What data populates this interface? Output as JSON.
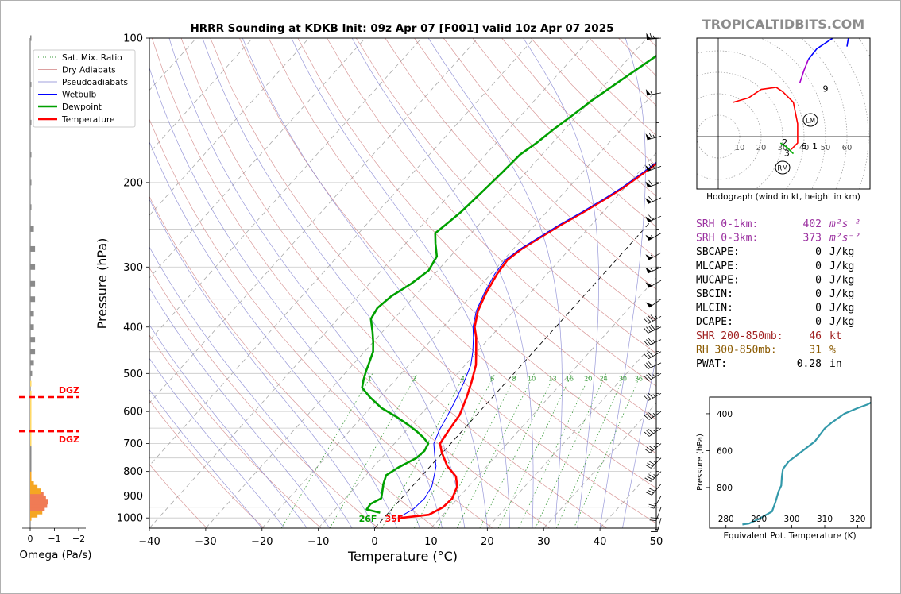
{
  "brand": "TROPICALTIDBITS.COM",
  "colors": {
    "temperature": "#ff0000",
    "dewpoint": "#00a000",
    "wetbulb": "#0000ff",
    "dry_adiabat": "#d08080",
    "pseudoadiabat": "#8080d0",
    "mixing_ratio": "#3a9a3a",
    "theta_e": "#3399aa",
    "dgz": "#ff0000",
    "hodo_red": "#ff0000",
    "hodo_purple": "#aa00cc",
    "hodo_blue": "#0000ff",
    "hodo_green": "#00aa00",
    "srh": "#9b30a0",
    "shr": "#a02020",
    "rh": "#8b5a00"
  },
  "chart_data": [
    {
      "type": "line",
      "title": "HRRR Sounding at KDKB Init: 09z Apr 07 [F001] valid 10z Apr 07 2025",
      "xlabel": "Temperature (°C)",
      "ylabel": "Pressure (hPa)",
      "xlim": [
        -40,
        50
      ],
      "ylim": [
        1050,
        100
      ],
      "log_y": true,
      "grid": true,
      "x_ticks": [
        "−40",
        "−30",
        "−20",
        "−10",
        "0",
        "10",
        "20",
        "30",
        "40",
        "50"
      ],
      "y_ticks": [
        "100",
        "200",
        "300",
        "400",
        "500",
        "600",
        "700",
        "800",
        "900",
        "1000"
      ],
      "legend": {
        "placement": "top-left",
        "entries": [
          "Sat. Mix. Ratio",
          "Dry Adiabats",
          "Pseudoadiabats",
          "Wetbulb",
          "Dewpoint",
          "Temperature"
        ]
      },
      "mixing_ratio_labels": [
        "1",
        "2",
        "4",
        "6",
        "8",
        "10",
        "13",
        "16",
        "20",
        "24",
        "30",
        "36"
      ],
      "surface_labels": {
        "dewpoint": "26F",
        "temperature": "35F"
      },
      "series": [
        {
          "name": "Temperature",
          "points": [
            [
              3.0,
              1000
            ],
            [
              7.5,
              985
            ],
            [
              8.8,
              950
            ],
            [
              9.0,
              910
            ],
            [
              8.0,
              860
            ],
            [
              6.2,
              820
            ],
            [
              3.0,
              780
            ],
            [
              -0.2,
              730
            ],
            [
              -1.9,
              700
            ],
            [
              -2.5,
              655
            ],
            [
              -3.0,
              610
            ],
            [
              -4.6,
              560
            ],
            [
              -6.2,
              520
            ],
            [
              -8.1,
              480
            ],
            [
              -10.2,
              450
            ],
            [
              -12.5,
              420
            ],
            [
              -14.4,
              400
            ],
            [
              -16.4,
              370
            ],
            [
              -17.8,
              340
            ],
            [
              -18.9,
              310
            ],
            [
              -19.3,
              290
            ],
            [
              -18.5,
              275
            ],
            [
              -17.0,
              260
            ],
            [
              -15.4,
              245
            ],
            [
              -13.4,
              230
            ],
            [
              -11.5,
              215
            ],
            [
              -10.3,
              205
            ],
            [
              -8.9,
              190
            ],
            [
              -7.6,
              175
            ],
            [
              -5.2,
              165
            ],
            [
              -3.6,
              155
            ],
            [
              -2.8,
              148
            ],
            [
              -2.1,
              140
            ],
            [
              -1.4,
              130
            ],
            [
              -0.8,
              120
            ],
            [
              -0.3,
              110
            ],
            [
              0.2,
              100
            ]
          ]
        },
        {
          "name": "Wetbulb",
          "points": [
            [
              2.5,
              1000
            ],
            [
              3.8,
              960
            ],
            [
              4.1,
              910
            ],
            [
              3.5,
              860
            ],
            [
              2.3,
              820
            ],
            [
              1.0,
              780
            ],
            [
              -1.0,
              740
            ],
            [
              -3.0,
              700
            ],
            [
              -4.2,
              655
            ],
            [
              -5.1,
              610
            ],
            [
              -6.3,
              560
            ],
            [
              -7.5,
              520
            ],
            [
              -9.0,
              480
            ],
            [
              -10.8,
              450
            ],
            [
              -13.0,
              420
            ],
            [
              -14.7,
              400
            ],
            [
              -16.7,
              370
            ],
            [
              -18.1,
              340
            ],
            [
              -19.3,
              310
            ],
            [
              -19.7,
              290
            ],
            [
              -18.8,
              275
            ],
            [
              -17.3,
              260
            ],
            [
              -15.7,
              245
            ],
            [
              -13.7,
              230
            ],
            [
              -11.8,
              215
            ],
            [
              -10.6,
              205
            ],
            [
              -9.2,
              190
            ],
            [
              -7.9,
              175
            ],
            [
              -5.5,
              165
            ],
            [
              -3.9,
              155
            ],
            [
              -3.1,
              148
            ],
            [
              -2.4,
              140
            ],
            [
              -1.7,
              130
            ],
            [
              -1.1,
              120
            ],
            [
              -0.6,
              110
            ],
            [
              -0.1,
              100
            ]
          ]
        },
        {
          "name": "Dewpoint",
          "points": [
            [
              -1.5,
              975
            ],
            [
              -4.4,
              960
            ],
            [
              -4.6,
              935
            ],
            [
              -3.6,
              910
            ],
            [
              -4.2,
              890
            ],
            [
              -5.5,
              850
            ],
            [
              -6.4,
              815
            ],
            [
              -5.5,
              785
            ],
            [
              -3.8,
              750
            ],
            [
              -3.5,
              725
            ],
            [
              -4.0,
              700
            ],
            [
              -5.8,
              680
            ],
            [
              -8.0,
              660
            ],
            [
              -10.5,
              640
            ],
            [
              -14.0,
              615
            ],
            [
              -18.0,
              590
            ],
            [
              -21.8,
              560
            ],
            [
              -24.7,
              535
            ],
            [
              -25.7,
              515
            ],
            [
              -26.6,
              495
            ],
            [
              -27.4,
              475
            ],
            [
              -28.5,
              450
            ],
            [
              -30.0,
              430
            ],
            [
              -31.7,
              410
            ],
            [
              -34.1,
              385
            ],
            [
              -34.7,
              365
            ],
            [
              -34.1,
              345
            ],
            [
              -32.6,
              325
            ],
            [
              -31.6,
              305
            ],
            [
              -32.4,
              285
            ],
            [
              -34.7,
              268
            ],
            [
              -36.4,
              255
            ],
            [
              -35.9,
              245
            ],
            [
              -35.2,
              230
            ],
            [
              -34.7,
              210
            ],
            [
              -34.2,
              190
            ],
            [
              -33.9,
              175
            ],
            [
              -32.8,
              165
            ],
            [
              -32.0,
              155
            ],
            [
              -30.9,
              145
            ],
            [
              -29.8,
              135
            ],
            [
              -28.3,
              125
            ],
            [
              -26.6,
              115
            ],
            [
              -25.3,
              108
            ],
            [
              -24.6,
              100
            ]
          ]
        }
      ]
    },
    {
      "type": "line",
      "title": "Hodograph (wind in kt, height in km)",
      "ring_labels": [
        "10",
        "20",
        "30",
        "40",
        "50",
        "60"
      ],
      "height_labels": [
        "1",
        "2",
        "3",
        "6",
        "9"
      ],
      "storm_motion_labels": [
        "LM",
        "RM"
      ],
      "series": [
        {
          "name": "0-1 km",
          "points": [
            [
              34,
              -6
            ],
            [
              37,
              -3
            ],
            [
              37,
              6
            ],
            [
              35,
              16
            ]
          ]
        },
        {
          "name": "1-3 km",
          "points": [
            [
              35,
              -8
            ],
            [
              32,
              -5
            ],
            [
              29,
              -3
            ]
          ]
        },
        {
          "name": "3-6 km",
          "points": [
            [
              35,
              16
            ],
            [
              30,
              21
            ],
            [
              27,
              23
            ],
            [
              20,
              22
            ],
            [
              14,
              18
            ],
            [
              7,
              16
            ]
          ]
        },
        {
          "name": "6-9 km",
          "points": [
            [
              38,
              25
            ],
            [
              40,
              31
            ],
            [
              42,
              36
            ]
          ]
        },
        {
          "name": "9-12 km",
          "points": [
            [
              42,
              36
            ],
            [
              46,
              41
            ],
            [
              55,
              47
            ],
            [
              61,
              48
            ],
            [
              60,
              42
            ]
          ]
        }
      ]
    },
    {
      "type": "line",
      "title": "",
      "xlabel": "Equivalent Pot. Temperature (K)",
      "ylabel": "Pressure (hPa)",
      "xlim": [
        275,
        324
      ],
      "ylim": [
        1020,
        310
      ],
      "x_ticks": [
        "280",
        "290",
        "300",
        "310",
        "320"
      ],
      "y_ticks": [
        "400",
        "600",
        "800"
      ],
      "series": [
        {
          "name": "",
          "points": [
            [
              285,
              1000
            ],
            [
              287,
              995
            ],
            [
              290,
              970
            ],
            [
              294,
              930
            ],
            [
              295,
              880
            ],
            [
              296,
              820
            ],
            [
              296.8,
              790
            ],
            [
              297,
              740
            ],
            [
              297.3,
              700
            ],
            [
              299,
              660
            ],
            [
              303,
              605
            ],
            [
              307,
              550
            ],
            [
              310,
              480
            ],
            [
              312,
              450
            ],
            [
              316,
              400
            ],
            [
              320,
              370
            ],
            [
              323,
              350
            ],
            [
              325,
              340
            ]
          ]
        }
      ]
    },
    {
      "type": "bar",
      "xlabel": "Omega (Pa/s)",
      "x_ticks": [
        "0",
        "−1",
        "−2"
      ],
      "xlim": [
        0,
        -2
      ],
      "dgz_label": "DGZ",
      "dgz_levels": [
        560,
        660
      ],
      "categories": [
        1000,
        985,
        970,
        955,
        940,
        925,
        910,
        895,
        880,
        865,
        850,
        835,
        820,
        805,
        790,
        775,
        760,
        745,
        730,
        715,
        700,
        685,
        670,
        655,
        640,
        625,
        610,
        595,
        580,
        565,
        550,
        525,
        500,
        475,
        450,
        425,
        400,
        375,
        350,
        325,
        300,
        275,
        250,
        225,
        200,
        175,
        150,
        125,
        100
      ],
      "values": [
        -0.05,
        -0.3,
        -0.5,
        -0.6,
        -0.7,
        -0.75,
        -0.65,
        -0.55,
        -0.45,
        -0.3,
        -0.15,
        -0.05,
        -0.03,
        -0.02,
        -0.02,
        -0.02,
        -0.02,
        -0.02,
        -0.02,
        -0.02,
        -0.02,
        -0.03,
        -0.03,
        -0.03,
        -0.04,
        -0.04,
        -0.05,
        -0.05,
        -0.05,
        -0.05,
        -0.05,
        -0.05,
        -0.08,
        -0.15,
        -0.2,
        -0.2,
        -0.15,
        -0.15,
        -0.2,
        -0.2,
        -0.2,
        -0.2,
        -0.15,
        -0.05,
        -0.02,
        -0.02,
        -0.05,
        -0.02,
        -0.02
      ]
    }
  ],
  "wind_barbs": [
    {
      "p": 100,
      "dir": 265,
      "spd": 65
    },
    {
      "p": 130,
      "dir": 260,
      "spd": 55
    },
    {
      "p": 160,
      "dir": 255,
      "spd": 65
    },
    {
      "p": 185,
      "dir": 250,
      "spd": 70
    },
    {
      "p": 200,
      "dir": 250,
      "spd": 60
    },
    {
      "p": 215,
      "dir": 245,
      "spd": 60
    },
    {
      "p": 235,
      "dir": 245,
      "spd": 60
    },
    {
      "p": 255,
      "dir": 240,
      "spd": 55
    },
    {
      "p": 280,
      "dir": 240,
      "spd": 55
    },
    {
      "p": 300,
      "dir": 245,
      "spd": 55
    },
    {
      "p": 320,
      "dir": 240,
      "spd": 50
    },
    {
      "p": 350,
      "dir": 235,
      "spd": 50
    },
    {
      "p": 380,
      "dir": 240,
      "spd": 45
    },
    {
      "p": 400,
      "dir": 245,
      "spd": 40
    },
    {
      "p": 425,
      "dir": 245,
      "spd": 35
    },
    {
      "p": 450,
      "dir": 240,
      "spd": 30
    },
    {
      "p": 475,
      "dir": 245,
      "spd": 30
    },
    {
      "p": 500,
      "dir": 240,
      "spd": 35
    },
    {
      "p": 550,
      "dir": 240,
      "spd": 35
    },
    {
      "p": 600,
      "dir": 235,
      "spd": 35
    },
    {
      "p": 650,
      "dir": 235,
      "spd": 35
    },
    {
      "p": 700,
      "dir": 230,
      "spd": 35
    },
    {
      "p": 750,
      "dir": 225,
      "spd": 35
    },
    {
      "p": 800,
      "dir": 225,
      "spd": 35
    },
    {
      "p": 850,
      "dir": 220,
      "spd": 30
    },
    {
      "p": 900,
      "dir": 210,
      "spd": 25
    },
    {
      "p": 950,
      "dir": 200,
      "spd": 20
    },
    {
      "p": 1000,
      "dir": 195,
      "spd": 15
    }
  ],
  "indices": [
    {
      "label": "SRH 0-1km:",
      "value": "402",
      "unit": "m²s⁻²",
      "color": "#9b30a0"
    },
    {
      "label": "SRH 0-3km:",
      "value": "373",
      "unit": "m²s⁻²",
      "color": "#9b30a0"
    },
    {
      "label": "SBCAPE:",
      "value": "0",
      "unit": "J/kg",
      "color": "#000000"
    },
    {
      "label": "MLCAPE:",
      "value": "0",
      "unit": "J/kg",
      "color": "#000000"
    },
    {
      "label": "MUCAPE:",
      "value": "0",
      "unit": "J/kg",
      "color": "#000000"
    },
    {
      "label": "SBCIN:",
      "value": "0",
      "unit": "J/kg",
      "color": "#000000"
    },
    {
      "label": "MLCIN:",
      "value": "0",
      "unit": "J/kg",
      "color": "#000000"
    },
    {
      "label": "DCAPE:",
      "value": "0",
      "unit": "J/kg",
      "color": "#000000"
    },
    {
      "label": "SHR 200-850mb:",
      "value": "46",
      "unit": "kt",
      "color": "#a02020"
    },
    {
      "label": "RH 300-850mb:",
      "value": "31",
      "unit": "%",
      "color": "#8b5a00"
    },
    {
      "label": "PWAT:",
      "value": "0.28",
      "unit": "in",
      "color": "#000000"
    }
  ]
}
